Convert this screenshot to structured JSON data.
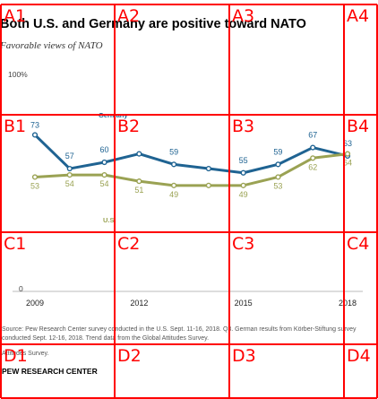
{
  "header": {
    "title": "Both U.S. and Germany are positive toward NATO",
    "subtitle": "Favorable views of NATO"
  },
  "footer": {
    "source": "Source: Pew Research Center survey conducted in the U.S. Sept. 11-16, 2018. Q3. German results from Körber-Stiftung survey conducted Sept. 12-16, 2018. Trend data from the Global Attitudes Survey.",
    "note": "Attitudes Survey.",
    "brand": "PEW RESEARCH CENTER"
  },
  "grid_labels": [
    "A1",
    "A2",
    "A3",
    "A4",
    "B1",
    "B2",
    "B3",
    "B4",
    "C1",
    "C2",
    "C3",
    "C4",
    "D1",
    "D2",
    "D3",
    "D4"
  ],
  "grid_color": "#ff0000",
  "chart_data": {
    "type": "line",
    "title": "Both U.S. and Germany are positive toward NATO",
    "subtitle": "Favorable views of NATO",
    "x": [
      2009,
      2010,
      2011,
      2012,
      2013,
      2014,
      2015,
      2016,
      2017,
      2018
    ],
    "xticks": [
      "2009",
      "2012",
      "2015",
      "2018"
    ],
    "ylim": [
      0,
      100
    ],
    "yticks": [
      "0",
      "100%"
    ],
    "series": [
      {
        "name": "Germany",
        "color": "#1f6392",
        "values": [
          73,
          57,
          60,
          64,
          59,
          57,
          55,
          59,
          67,
          63
        ]
      },
      {
        "name": "U.S.",
        "color": "#9aa253",
        "values": [
          53,
          54,
          54,
          51,
          49,
          49,
          49,
          53,
          62,
          64
        ]
      }
    ],
    "value_labels_shown": {
      "Germany": [
        "73",
        "57",
        "60",
        "",
        "59",
        "",
        "55",
        "59",
        "67",
        "63"
      ],
      "U.S.": [
        "53",
        "54",
        "54",
        "51",
        "49",
        "",
        "49",
        "53",
        "62",
        "64"
      ]
    }
  }
}
